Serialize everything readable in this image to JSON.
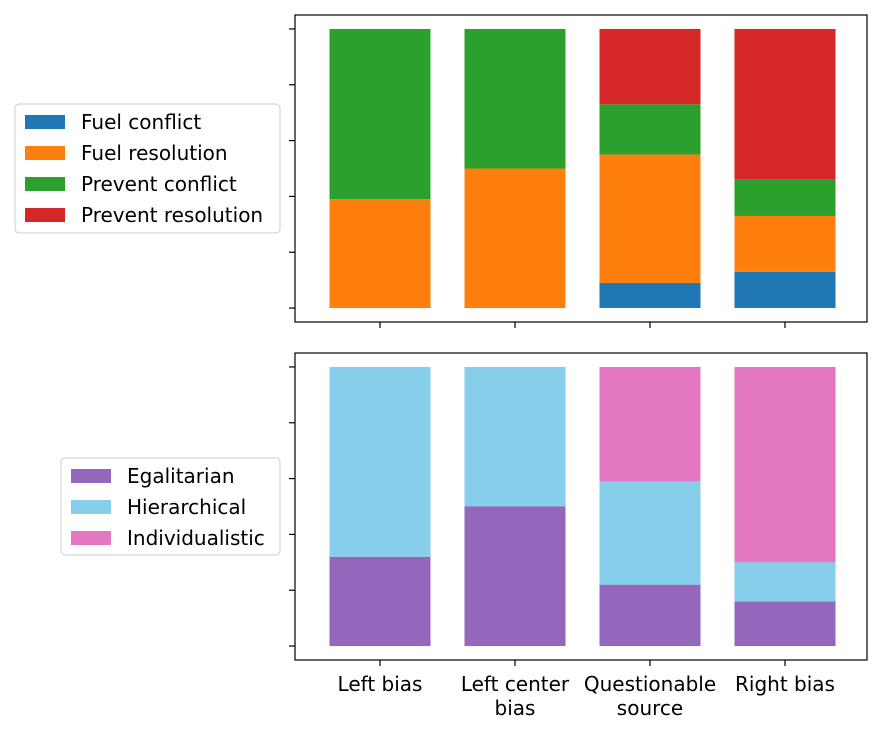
{
  "chart_data": [
    {
      "type": "bar",
      "stacked": true,
      "normalized": true,
      "categories": [
        "Left bias",
        "Left center bias",
        "Questionable source",
        "Right bias"
      ],
      "category_labels": [
        [
          "Left bias"
        ],
        [
          "Left center",
          "bias"
        ],
        [
          "Questionable",
          "source"
        ],
        [
          "Right bias"
        ]
      ],
      "series": [
        {
          "name": "Fuel conflict",
          "color": "#1f77b4",
          "values": [
            0.0,
            0.0,
            0.09,
            0.13
          ]
        },
        {
          "name": "Fuel resolution",
          "color": "#ff7f0e",
          "values": [
            0.39,
            0.5,
            0.46,
            0.2
          ]
        },
        {
          "name": "Prevent conflict",
          "color": "#2ca02c",
          "values": [
            0.61,
            0.5,
            0.18,
            0.13
          ]
        },
        {
          "name": "Prevent resolution",
          "color": "#d62728",
          "values": [
            0.0,
            0.0,
            0.27,
            0.54
          ]
        }
      ],
      "ylim": [
        -0.05,
        1.05
      ],
      "yticks": [
        0,
        0.2,
        0.4,
        0.6,
        0.8,
        1.0
      ],
      "show_ytick_labels": false,
      "show_xtick_labels": false,
      "legend": "outside-left"
    },
    {
      "type": "bar",
      "stacked": true,
      "normalized": true,
      "categories": [
        "Left bias",
        "Left center bias",
        "Questionable source",
        "Right bias"
      ],
      "category_labels": [
        [
          "Left bias"
        ],
        [
          "Left center",
          "bias"
        ],
        [
          "Questionable",
          "source"
        ],
        [
          "Right bias"
        ]
      ],
      "series": [
        {
          "name": "Egalitarian",
          "color": "#9467bd",
          "values": [
            0.32,
            0.5,
            0.22,
            0.16
          ]
        },
        {
          "name": "Hierarchical",
          "color": "#87ceeb",
          "values": [
            0.68,
            0.5,
            0.37,
            0.14
          ]
        },
        {
          "name": "Individualistic",
          "color": "#e377c2",
          "values": [
            0.0,
            0.0,
            0.41,
            0.7
          ]
        }
      ],
      "ylim": [
        -0.05,
        1.05
      ],
      "yticks": [
        0,
        0.2,
        0.4,
        0.6,
        0.8,
        1.0
      ],
      "show_ytick_labels": false,
      "show_xtick_labels": true,
      "legend": "outside-left"
    }
  ]
}
